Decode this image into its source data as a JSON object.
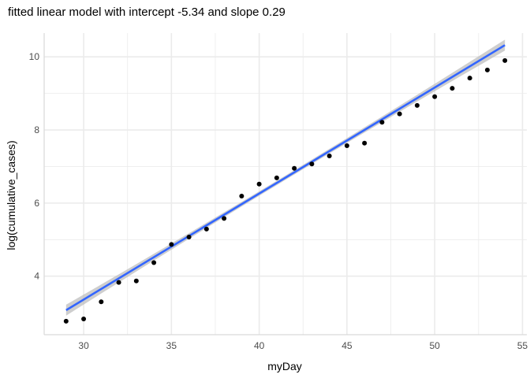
{
  "chart_data": {
    "type": "scatter",
    "title": "fitted linear model with  intercept -5.34 and slope 0.29",
    "xlabel": "myDay",
    "ylabel": "log(cumulative_cases)",
    "xlim": [
      27.75,
      55.25
    ],
    "ylim": [
      2.4,
      10.65
    ],
    "xticks": [
      30,
      35,
      40,
      45,
      50,
      55
    ],
    "yticks": [
      4,
      6,
      8,
      10
    ],
    "grid": true,
    "points": [
      {
        "x": 29,
        "y": 2.77
      },
      {
        "x": 30,
        "y": 2.83
      },
      {
        "x": 31,
        "y": 3.3
      },
      {
        "x": 32,
        "y": 3.83
      },
      {
        "x": 33,
        "y": 3.87
      },
      {
        "x": 34,
        "y": 4.37
      },
      {
        "x": 35,
        "y": 4.87
      },
      {
        "x": 36,
        "y": 5.07
      },
      {
        "x": 37,
        "y": 5.29
      },
      {
        "x": 38,
        "y": 5.58
      },
      {
        "x": 39,
        "y": 6.19
      },
      {
        "x": 40,
        "y": 6.52
      },
      {
        "x": 41,
        "y": 6.69
      },
      {
        "x": 42,
        "y": 6.95
      },
      {
        "x": 43,
        "y": 7.07
      },
      {
        "x": 44,
        "y": 7.29
      },
      {
        "x": 45,
        "y": 7.57
      },
      {
        "x": 46,
        "y": 7.64
      },
      {
        "x": 47,
        "y": 8.21
      },
      {
        "x": 48,
        "y": 8.44
      },
      {
        "x": 49,
        "y": 8.67
      },
      {
        "x": 50,
        "y": 8.91
      },
      {
        "x": 51,
        "y": 9.14
      },
      {
        "x": 52,
        "y": 9.42
      },
      {
        "x": 53,
        "y": 9.64
      },
      {
        "x": 54,
        "y": 9.9
      }
    ],
    "fit": {
      "intercept": -5.34,
      "slope": 0.29,
      "x_range": [
        29,
        54
      ],
      "ci_halfwidth_ends": 0.15,
      "ci_halfwidth_mid": 0.06
    },
    "colors": {
      "points": "#000000",
      "fit_line": "#3366ff",
      "ci_band": "#bebebe",
      "grid": "#ebebeb",
      "axis": "#d9d9d9"
    }
  }
}
